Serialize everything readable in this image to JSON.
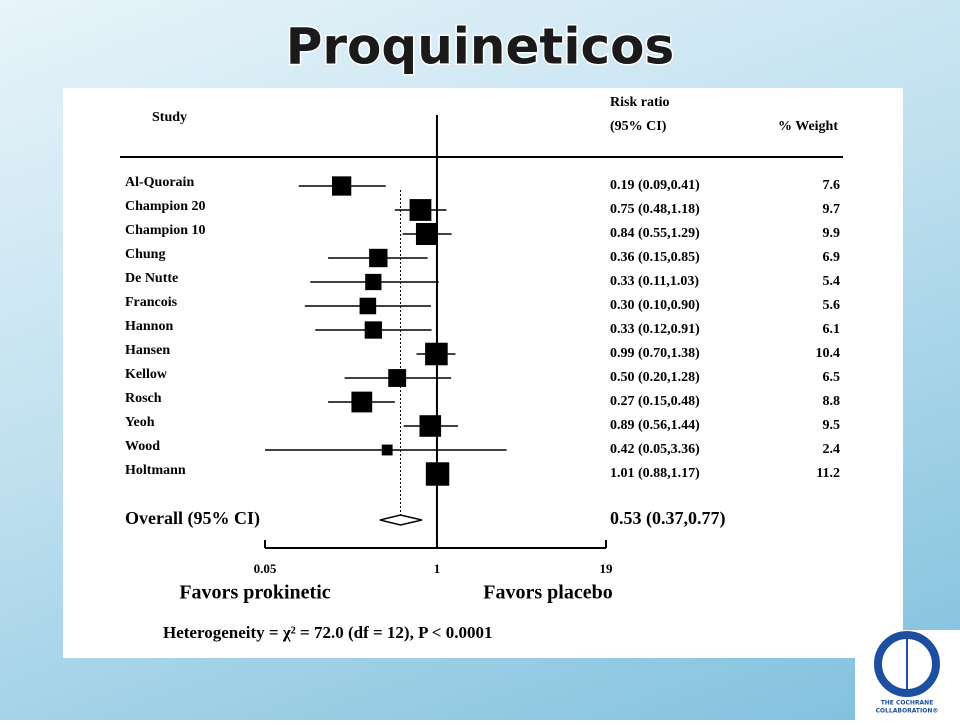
{
  "chart_data": {
    "type": "forest",
    "title": "Proquineticos",
    "column_study": "Study",
    "column_ratio": "Risk ratio",
    "column_ci": "(95% CI)",
    "column_weight": "% Weight",
    "categories": [
      "Al-Quorain",
      "Champion 20",
      "Champion 10",
      "Chung",
      "De Nutte",
      "Francois",
      "Hannon",
      "Hansen",
      "Kellow",
      "Rosch",
      "Yeoh",
      "Wood",
      "Holtmann"
    ],
    "values": [
      0.19,
      0.75,
      0.84,
      0.36,
      0.33,
      0.3,
      0.33,
      0.99,
      0.5,
      0.27,
      0.89,
      0.42,
      1.01
    ],
    "lower": [
      0.09,
      0.48,
      0.55,
      0.15,
      0.11,
      0.1,
      0.12,
      0.7,
      0.2,
      0.15,
      0.56,
      0.05,
      0.88
    ],
    "upper": [
      0.41,
      1.18,
      1.29,
      0.85,
      1.03,
      0.9,
      0.91,
      1.38,
      1.28,
      0.48,
      1.44,
      3.36,
      1.17
    ],
    "value_labels": [
      "0.19 (0.09,0.41)",
      "0.75 (0.48,1.18)",
      "0.84 (0.55,1.29)",
      "0.36 (0.15,0.85)",
      "0.33 (0.11,1.03)",
      "0.30 (0.10,0.90)",
      "0.33 (0.12,0.91)",
      "0.99 (0.70,1.38)",
      "0.50 (0.20,1.28)",
      "0.27 (0.15,0.48)",
      "0.89 (0.56,1.44)",
      "0.42 (0.05,3.36)",
      "1.01 (0.88,1.17)"
    ],
    "weights": [
      7.6,
      9.7,
      9.9,
      6.9,
      5.4,
      5.6,
      6.1,
      10.4,
      6.5,
      8.8,
      9.5,
      2.4,
      11.2
    ],
    "overall": {
      "label": "Overall (95% CI)",
      "value": 0.53,
      "lower": 0.37,
      "upper": 0.77,
      "value_label": "0.53 (0.37,0.77)"
    },
    "xlim": [
      0.05,
      19
    ],
    "xticks": [
      0.05,
      1,
      19
    ],
    "log_scale": true,
    "color": "#000000",
    "xlabel_left": "Favors prokinetic",
    "xlabel_right": "Favors placebo",
    "annotation": "Heterogeneity = χ² = 72.0 (df = 12), P < 0.0001"
  },
  "logo": {
    "lines": [
      "THE COCHRANE",
      "COLLABORATION®"
    ]
  }
}
